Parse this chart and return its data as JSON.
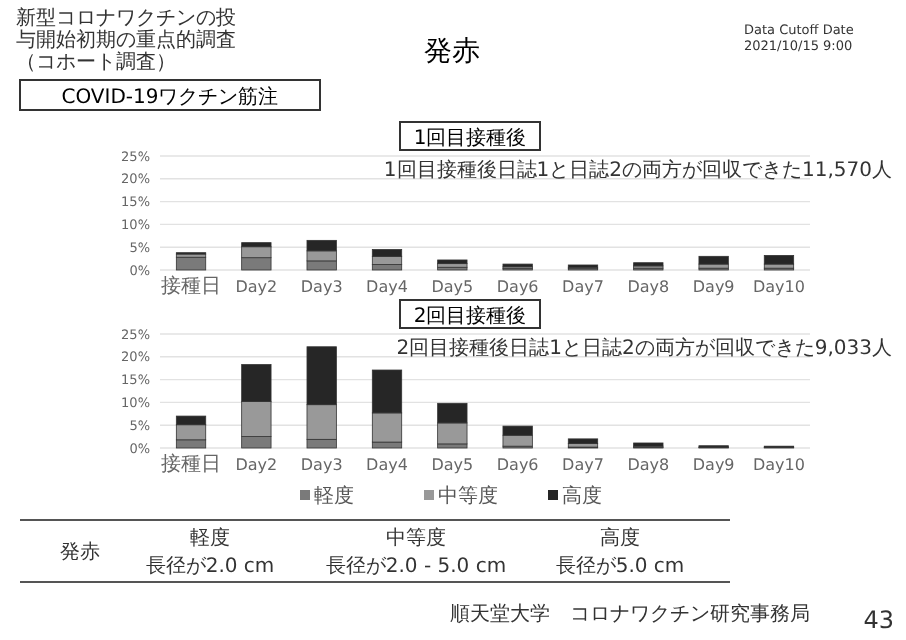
{
  "chart_data": [
    {
      "type": "other",
      "title": "発赤",
      "subtitle": "COVID-19ワクチン筋注",
      "annotations": [
        "新型コロナワクチンの投",
        "与開始初期の重点的調査",
        "（コホート調査）",
        "Data Cutoff Date",
        "2021/10/15 9:00",
        "発赤",
        "軽度",
        "長径が2.0 cm",
        "中等度",
        "長径が2.0 - 5.0 cm",
        "高度",
        "長径が5.0 cm",
        "順天堂大学　コロナワクチン研究事務局",
        "43"
      ]
    },
    {
      "type": "bar",
      "stacked": true,
      "title": "1回目接種後",
      "annotations": [
        "1回目接種後日誌1と日誌2の両方が回収できた11,570人"
      ],
      "categories": [
        "接種日",
        "Day2",
        "Day3",
        "Day4",
        "Day5",
        "Day6",
        "Day7",
        "Day8",
        "Day9",
        "Day10"
      ],
      "series": [
        {
          "color": "#7a7a7a",
          "values": [
            2.8,
            2.7,
            2.0,
            1.2,
            0.6,
            0.3,
            0.3,
            0.4,
            0.4,
            0.4
          ]
        },
        {
          "color": "#999999",
          "values": [
            0.7,
            2.4,
            2.2,
            1.8,
            0.8,
            0.4,
            0.3,
            0.5,
            0.9,
            0.9
          ]
        },
        {
          "color": "#262626",
          "values": [
            0.3,
            0.9,
            2.3,
            1.5,
            0.8,
            0.6,
            0.5,
            0.7,
            1.7,
            1.9
          ]
        }
      ],
      "ylim": [
        0,
        25
      ],
      "yticks": [
        {
          "value": 0,
          "label": "0%"
        },
        {
          "value": 5,
          "label": "5%"
        },
        {
          "value": 10,
          "label": "10%"
        },
        {
          "value": 15,
          "label": "15%"
        },
        {
          "value": 20,
          "label": "20%"
        },
        {
          "value": 25,
          "label": "25%"
        }
      ],
      "grid": "y"
    },
    {
      "type": "bar",
      "stacked": true,
      "title": "2回目接種後",
      "annotations": [
        "2回目接種後日誌1と日誌2の両方が回収できた9,033人"
      ],
      "categories": [
        "接種日",
        "Day2",
        "Day3",
        "Day4",
        "Day5",
        "Day6",
        "Day7",
        "Day8",
        "Day9",
        "Day10"
      ],
      "series": [
        {
          "name": "軽度",
          "color": "#7a7a7a",
          "values": [
            1.8,
            2.5,
            1.9,
            1.3,
            0.9,
            0.4,
            0.2,
            0.1,
            0.1,
            0.1
          ]
        },
        {
          "name": "中等度",
          "color": "#999999",
          "values": [
            3.3,
            7.7,
            7.6,
            6.4,
            4.6,
            2.4,
            0.8,
            0.3,
            0.1,
            0.1
          ]
        },
        {
          "name": "高度",
          "color": "#262626",
          "values": [
            1.9,
            8.1,
            12.7,
            9.4,
            4.3,
            2.0,
            1.0,
            0.7,
            0.3,
            0.2
          ]
        }
      ],
      "ylim": [
        0,
        25
      ],
      "yticks": [
        {
          "value": 0,
          "label": "0%"
        },
        {
          "value": 5,
          "label": "5%"
        },
        {
          "value": 10,
          "label": "10%"
        },
        {
          "value": 15,
          "label": "15%"
        },
        {
          "value": 20,
          "label": "20%"
        },
        {
          "value": 25,
          "label": "25%"
        }
      ],
      "grid": "y",
      "legend": "bottom"
    }
  ]
}
